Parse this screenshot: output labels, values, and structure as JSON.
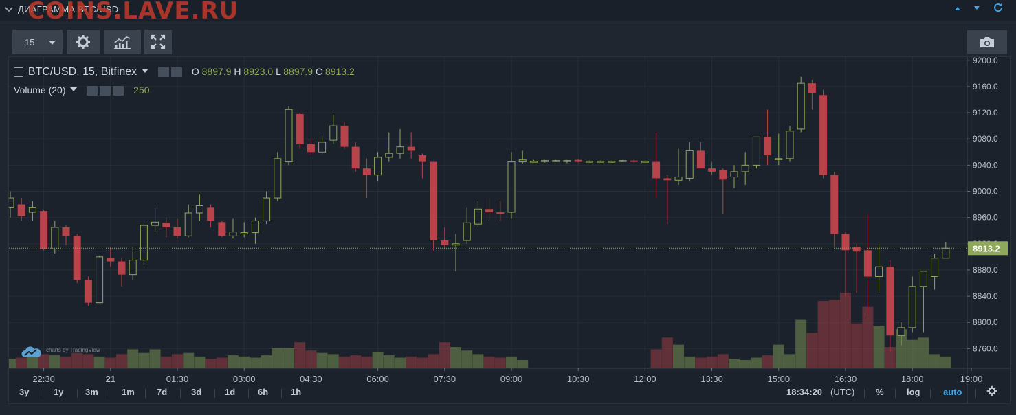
{
  "header": {
    "title": "ДИАГРАММА BTC/USD",
    "watermark": "COINS.LAVE.RU"
  },
  "toolbar": {
    "interval_value": "15"
  },
  "legend": {
    "symbol": "BTC/USD, 15, Bitfinex",
    "o_label": "O",
    "o_value": "8897.9",
    "h_label": "H",
    "h_value": "8923.0",
    "l_label": "L",
    "l_value": "8897.9",
    "c_label": "C",
    "c_value": "8913.2",
    "volume_label": "Volume (20)",
    "volume_value": "250"
  },
  "branding": "charts by TradingView",
  "footer": {
    "ranges": [
      "3y",
      "1y",
      "3m",
      "1m",
      "7d",
      "3d",
      "1d",
      "6h",
      "1h"
    ],
    "time": "18:34:20",
    "tz": "(UTC)",
    "percent": "%",
    "log": "log",
    "auto": "auto"
  },
  "colors": {
    "up": "#8fa85a",
    "down": "#b9434b",
    "auto_active": "#3fa6e8",
    "last_price_bg": "#8fa85a"
  },
  "chart_data": {
    "type": "candlestick",
    "price_axis_labels": [
      "9200.0",
      "9160.0",
      "9120.0",
      "9080.0",
      "9040.0",
      "9000.0",
      "8960.0",
      "8920.0",
      "8880.0",
      "8840.0",
      "8800.0",
      "8760.0"
    ],
    "time_axis_labels": [
      "22:30",
      "21",
      "01:30",
      "03:00",
      "04:30",
      "06:00",
      "07:30",
      "09:00",
      "10:30",
      "12:00",
      "13:30",
      "15:00",
      "16:30",
      "18:00",
      "19:00"
    ],
    "last_price": "8913.2",
    "ylim": [
      8730,
      9205
    ],
    "candles": [
      {
        "o": 8975,
        "h": 9000,
        "l": 8960,
        "c": 8990
      },
      {
        "o": 8980,
        "h": 8990,
        "l": 8955,
        "c": 8962
      },
      {
        "o": 8968,
        "h": 8985,
        "l": 8955,
        "c": 8975
      },
      {
        "o": 8970,
        "h": 8972,
        "l": 8910,
        "c": 8912
      },
      {
        "o": 8912,
        "h": 8955,
        "l": 8905,
        "c": 8945
      },
      {
        "o": 8945,
        "h": 8948,
        "l": 8918,
        "c": 8932
      },
      {
        "o": 8932,
        "h": 8935,
        "l": 8860,
        "c": 8865
      },
      {
        "o": 8865,
        "h": 8870,
        "l": 8825,
        "c": 8830
      },
      {
        "o": 8830,
        "h": 8902,
        "l": 8830,
        "c": 8900
      },
      {
        "o": 8898,
        "h": 8915,
        "l": 8885,
        "c": 8893
      },
      {
        "o": 8893,
        "h": 8898,
        "l": 8855,
        "c": 8873
      },
      {
        "o": 8873,
        "h": 8915,
        "l": 8865,
        "c": 8895
      },
      {
        "o": 8895,
        "h": 8950,
        "l": 8888,
        "c": 8948
      },
      {
        "o": 8948,
        "h": 8975,
        "l": 8938,
        "c": 8953
      },
      {
        "o": 8952,
        "h": 8960,
        "l": 8930,
        "c": 8945
      },
      {
        "o": 8945,
        "h": 8958,
        "l": 8928,
        "c": 8932
      },
      {
        "o": 8932,
        "h": 8980,
        "l": 8930,
        "c": 8967
      },
      {
        "o": 8967,
        "h": 8995,
        "l": 8955,
        "c": 8978
      },
      {
        "o": 8975,
        "h": 8980,
        "l": 8945,
        "c": 8955
      },
      {
        "o": 8953,
        "h": 8955,
        "l": 8930,
        "c": 8932
      },
      {
        "o": 8932,
        "h": 8958,
        "l": 8928,
        "c": 8938
      },
      {
        "o": 8935,
        "h": 8953,
        "l": 8930,
        "c": 8937
      },
      {
        "o": 8937,
        "h": 8960,
        "l": 8920,
        "c": 8955
      },
      {
        "o": 8955,
        "h": 9000,
        "l": 8950,
        "c": 8990
      },
      {
        "o": 8990,
        "h": 9060,
        "l": 8985,
        "c": 9050
      },
      {
        "o": 9045,
        "h": 9130,
        "l": 9040,
        "c": 9125
      },
      {
        "o": 9118,
        "h": 9120,
        "l": 9065,
        "c": 9072
      },
      {
        "o": 9072,
        "h": 9080,
        "l": 9055,
        "c": 9060
      },
      {
        "o": 9060,
        "h": 9085,
        "l": 9057,
        "c": 9075
      },
      {
        "o": 9078,
        "h": 9117,
        "l": 9072,
        "c": 9100
      },
      {
        "o": 9100,
        "h": 9105,
        "l": 9065,
        "c": 9068
      },
      {
        "o": 9068,
        "h": 9075,
        "l": 9030,
        "c": 9035
      },
      {
        "o": 9035,
        "h": 9050,
        "l": 8990,
        "c": 9025
      },
      {
        "o": 9025,
        "h": 9060,
        "l": 9015,
        "c": 9052
      },
      {
        "o": 9052,
        "h": 9090,
        "l": 9045,
        "c": 9058
      },
      {
        "o": 9058,
        "h": 9095,
        "l": 9050,
        "c": 9068
      },
      {
        "o": 9068,
        "h": 9090,
        "l": 9050,
        "c": 9062
      },
      {
        "o": 9055,
        "h": 9058,
        "l": 9020,
        "c": 9045
      },
      {
        "o": 9045,
        "h": 9045,
        "l": 8910,
        "c": 8925
      },
      {
        "o": 8925,
        "h": 8945,
        "l": 8912,
        "c": 8918
      },
      {
        "o": 8918,
        "h": 8935,
        "l": 8878,
        "c": 8920
      },
      {
        "o": 8925,
        "h": 8975,
        "l": 8920,
        "c": 8952
      },
      {
        "o": 8950,
        "h": 8985,
        "l": 8945,
        "c": 8973
      },
      {
        "o": 8973,
        "h": 8990,
        "l": 8955,
        "c": 8968
      },
      {
        "o": 8968,
        "h": 8985,
        "l": 8955,
        "c": 8965
      },
      {
        "o": 8968,
        "h": 9060,
        "l": 8958,
        "c": 9045
      },
      {
        "o": 9045,
        "h": 9062,
        "l": 9042,
        "c": 9048
      },
      {
        "o": 9046,
        "h": 9048,
        "l": 9044,
        "c": 9046
      },
      {
        "o": 9046,
        "h": 9048,
        "l": 9044,
        "c": 9047
      },
      {
        "o": 9047,
        "h": 9048,
        "l": 9045,
        "c": 9047
      },
      {
        "o": 9047,
        "h": 9048,
        "l": 9043,
        "c": 9047
      },
      {
        "o": 9048,
        "h": 9049,
        "l": 9044,
        "c": 9045
      },
      {
        "o": 9046,
        "h": 9047,
        "l": 9045,
        "c": 9046
      },
      {
        "o": 9046,
        "h": 9047,
        "l": 9045,
        "c": 9046
      },
      {
        "o": 9046,
        "h": 9047,
        "l": 9045,
        "c": 9046
      },
      {
        "o": 9046,
        "h": 9048,
        "l": 9045,
        "c": 9047
      },
      {
        "o": 9047,
        "h": 9048,
        "l": 9044,
        "c": 9045
      },
      {
        "o": 9045,
        "h": 9047,
        "l": 9044,
        "c": 9046
      },
      {
        "o": 9045,
        "h": 9090,
        "l": 8990,
        "c": 9020
      },
      {
        "o": 9020,
        "h": 9025,
        "l": 8950,
        "c": 9017
      },
      {
        "o": 9017,
        "h": 9065,
        "l": 9010,
        "c": 9022
      },
      {
        "o": 9020,
        "h": 9075,
        "l": 9015,
        "c": 9062
      },
      {
        "o": 9062,
        "h": 9075,
        "l": 9035,
        "c": 9035
      },
      {
        "o": 9035,
        "h": 9045,
        "l": 9025,
        "c": 9030
      },
      {
        "o": 9032,
        "h": 9035,
        "l": 8965,
        "c": 9018
      },
      {
        "o": 9022,
        "h": 9040,
        "l": 9005,
        "c": 9030
      },
      {
        "o": 9030,
        "h": 9060,
        "l": 9010,
        "c": 9040
      },
      {
        "o": 9040,
        "h": 9080,
        "l": 9035,
        "c": 9083
      },
      {
        "o": 9083,
        "h": 9125,
        "l": 9040,
        "c": 9055
      },
      {
        "o": 9050,
        "h": 9088,
        "l": 9040,
        "c": 9050
      },
      {
        "o": 9050,
        "h": 9100,
        "l": 9045,
        "c": 9092
      },
      {
        "o": 9095,
        "h": 9175,
        "l": 9090,
        "c": 9165
      },
      {
        "o": 9165,
        "h": 9170,
        "l": 9125,
        "c": 9150
      },
      {
        "o": 9147,
        "h": 9155,
        "l": 9020,
        "c": 9025
      },
      {
        "o": 9025,
        "h": 9030,
        "l": 8915,
        "c": 8935
      },
      {
        "o": 8935,
        "h": 8938,
        "l": 8840,
        "c": 8910
      },
      {
        "o": 8915,
        "h": 8920,
        "l": 8845,
        "c": 8908
      },
      {
        "o": 8910,
        "h": 8965,
        "l": 8810,
        "c": 8870
      },
      {
        "o": 8870,
        "h": 8920,
        "l": 8845,
        "c": 8885
      },
      {
        "o": 8885,
        "h": 8895,
        "l": 8755,
        "c": 8780
      },
      {
        "o": 8780,
        "h": 8800,
        "l": 8765,
        "c": 8792
      },
      {
        "o": 8792,
        "h": 8870,
        "l": 8785,
        "c": 8855
      },
      {
        "o": 8855,
        "h": 8875,
        "l": 8785,
        "c": 8878
      },
      {
        "o": 8870,
        "h": 8905,
        "l": 8850,
        "c": 8898
      },
      {
        "o": 8898,
        "h": 8923,
        "l": 8897.9,
        "c": 8913.2
      }
    ],
    "volume": [
      8,
      9,
      14,
      12,
      11,
      10,
      13,
      12,
      10,
      9,
      12,
      16,
      13,
      16,
      10,
      12,
      13,
      10,
      8,
      9,
      11,
      10,
      9,
      11,
      17,
      17,
      22,
      15,
      13,
      12,
      10,
      11,
      10,
      14,
      11,
      9,
      10,
      9,
      12,
      22,
      18,
      15,
      12,
      10,
      9,
      10,
      7,
      0,
      0,
      0,
      0,
      0,
      0,
      0,
      0,
      0,
      0,
      0,
      16,
      26,
      20,
      10,
      9,
      10,
      12,
      8,
      7,
      9,
      11,
      20,
      12,
      41,
      30,
      57,
      58,
      64,
      38,
      52,
      36,
      18,
      33,
      24,
      26,
      12,
      10
    ]
  }
}
